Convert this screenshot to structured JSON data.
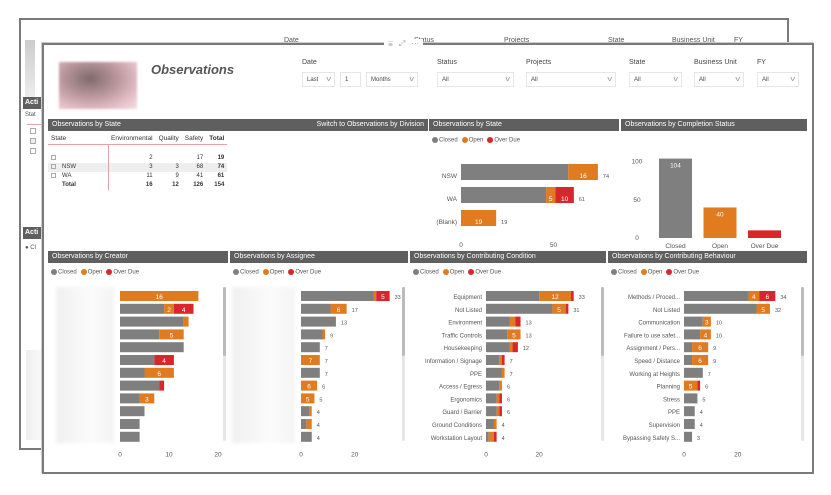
{
  "colors": {
    "closed": "#7f7f7f",
    "open": "#e07b20",
    "overdue": "#d9262a",
    "header": "#5f5f5f"
  },
  "background_window": {
    "title_fragment": "Acti",
    "slicer_labels": [
      "Date",
      "Status",
      "Projects",
      "State",
      "Business Unit",
      "FY"
    ],
    "panel1_header": "Acti",
    "panel1_col": "Stat",
    "panel2_header": "Acti",
    "legend_fragment": "Cl"
  },
  "report": {
    "title": "Observations",
    "header_icons": [
      "filter-icon",
      "focus-mode-icon",
      "more-options-icon"
    ],
    "slicers": {
      "date": {
        "label": "Date",
        "relative": "Last",
        "count": "1",
        "unit": "Months"
      },
      "status": {
        "label": "Status",
        "value": "All"
      },
      "projects": {
        "label": "Projects",
        "value": "All"
      },
      "state": {
        "label": "State",
        "value": "All"
      },
      "business_unit": {
        "label": "Business Unit",
        "value": "All"
      },
      "fy": {
        "label": "FY",
        "value": "All"
      }
    },
    "legend": [
      "Closed",
      "Open",
      "Over Due"
    ],
    "matrix": {
      "title": "Observations by State",
      "switch_link": "Switch to Observations by Division",
      "columns": [
        "State",
        "Environmental",
        "Quality",
        "Safety",
        "Total"
      ],
      "rows": [
        {
          "state": "",
          "environmental": "2",
          "quality": "",
          "safety": "17",
          "total": "19"
        },
        {
          "state": "NSW",
          "environmental": "3",
          "quality": "3",
          "safety": "68",
          "total": "74"
        },
        {
          "state": "WA",
          "environmental": "11",
          "quality": "9",
          "safety": "41",
          "total": "61"
        }
      ],
      "total_row": {
        "state": "Total",
        "environmental": "16",
        "quality": "12",
        "safety": "126",
        "total": "154"
      }
    }
  },
  "chart_data": [
    {
      "type": "bar",
      "orientation": "horizontal",
      "stacked": true,
      "title": "Observations by State",
      "categories": [
        "NSW",
        "WA",
        "(Blank)"
      ],
      "series": [
        {
          "name": "Closed",
          "values": [
            58,
            46,
            0
          ]
        },
        {
          "name": "Open",
          "values": [
            16,
            5,
            19
          ]
        },
        {
          "name": "Over Due",
          "values": [
            0,
            10,
            0
          ]
        }
      ],
      "totals": [
        74,
        61,
        19
      ],
      "segment_labels": [
        [
          "",
          "16",
          ""
        ],
        [
          "",
          "5",
          "10"
        ],
        [
          "",
          "19",
          ""
        ]
      ],
      "xticks": [
        "0",
        "50"
      ],
      "xlim": [
        0,
        80
      ],
      "legend": "top-left"
    },
    {
      "type": "bar",
      "orientation": "vertical",
      "title": "Observations by Completion Status",
      "categories": [
        "Closed",
        "Open",
        "Over Due"
      ],
      "values": [
        104,
        40,
        10
      ],
      "data_labels": [
        "104",
        "40",
        ""
      ],
      "yticks": [
        "0",
        "50",
        "100"
      ],
      "ylim": [
        0,
        110
      ]
    },
    {
      "type": "bar",
      "orientation": "horizontal",
      "stacked": true,
      "title": "Observations by Creator",
      "categories_blurred": true,
      "series": [
        {
          "name": "Closed",
          "values": [
            0,
            9,
            13,
            8,
            13,
            7,
            5,
            8,
            4,
            5,
            4,
            4
          ]
        },
        {
          "name": "Open",
          "values": [
            16,
            2,
            1,
            5,
            0,
            0,
            6,
            0,
            3,
            0,
            0,
            0
          ]
        },
        {
          "name": "Over Due",
          "values": [
            0,
            4,
            0,
            0,
            0,
            4,
            0,
            1,
            0,
            0,
            0,
            0
          ]
        }
      ],
      "segment_labels": [
        [
          "",
          "16",
          ""
        ],
        [
          "",
          "2",
          "4"
        ],
        [
          "",
          "",
          ""
        ],
        [
          "",
          "5",
          ""
        ],
        [
          "",
          "",
          ""
        ],
        [
          "",
          "",
          "4"
        ],
        [
          "",
          "6",
          ""
        ],
        [
          "",
          "",
          ""
        ],
        [
          "",
          "3",
          ""
        ],
        [
          "",
          "",
          ""
        ],
        [
          "",
          "",
          ""
        ],
        [
          "",
          "",
          ""
        ]
      ],
      "xticks": [
        "0",
        "10",
        "20"
      ],
      "xlim": [
        0,
        20
      ]
    },
    {
      "type": "bar",
      "orientation": "horizontal",
      "stacked": true,
      "title": "Observations by Assignee",
      "categories_blurred": true,
      "series": [
        {
          "name": "Closed",
          "values": [
            27,
            11,
            13,
            8,
            7,
            0,
            7,
            0,
            0,
            3,
            2,
            4
          ]
        },
        {
          "name": "Open",
          "values": [
            1,
            6,
            0,
            1,
            0,
            7,
            0,
            6,
            5,
            1,
            2,
            0
          ]
        },
        {
          "name": "Over Due",
          "values": [
            5,
            0,
            0,
            0,
            0,
            0,
            0,
            0,
            0,
            0,
            0,
            0
          ]
        }
      ],
      "totals": [
        33,
        17,
        13,
        9,
        7,
        7,
        7,
        6,
        5,
        4,
        4,
        4
      ],
      "segment_labels": [
        [
          "",
          "",
          "5"
        ],
        [
          "",
          "6",
          ""
        ],
        [
          "",
          "",
          ""
        ],
        [
          "",
          "",
          ""
        ],
        [
          "",
          "",
          ""
        ],
        [
          "",
          "7",
          ""
        ],
        [
          "",
          "",
          ""
        ],
        [
          "",
          "6",
          ""
        ],
        [
          "",
          "5",
          ""
        ],
        [
          "",
          "",
          ""
        ],
        [
          "",
          "",
          ""
        ],
        [
          "",
          "",
          ""
        ]
      ],
      "xticks": [
        "0",
        "20"
      ],
      "xlim": [
        0,
        35
      ]
    },
    {
      "type": "bar",
      "orientation": "horizontal",
      "stacked": true,
      "title": "Observations by Contributing Condition",
      "categories": [
        "Equipment",
        "Not Listed",
        "Environment",
        "Traffic Controls",
        "Housekeeping",
        "Information / Signage",
        "PPE",
        "Access / Egress",
        "Ergonomics",
        "Guard / Barrier",
        "Ground Conditions",
        "Workstation Layout"
      ],
      "series": [
        {
          "name": "Closed",
          "values": [
            20,
            25,
            9,
            8,
            9,
            5,
            6,
            5,
            4,
            4,
            3,
            1
          ]
        },
        {
          "name": "Open",
          "values": [
            12,
            5,
            2,
            5,
            1,
            1,
            1,
            1,
            1,
            1,
            1,
            2
          ]
        },
        {
          "name": "Over Due",
          "values": [
            1,
            1,
            2,
            0,
            2,
            1,
            0,
            0,
            1,
            1,
            0,
            1
          ]
        }
      ],
      "totals": [
        33,
        31,
        13,
        13,
        12,
        7,
        7,
        6,
        6,
        6,
        4,
        4
      ],
      "segment_labels": [
        [
          "",
          "12",
          ""
        ],
        [
          "",
          "5",
          ""
        ],
        [
          "",
          "",
          ""
        ],
        [
          "",
          "5",
          ""
        ],
        [
          "",
          "",
          ""
        ],
        [
          "",
          "",
          ""
        ],
        [
          "",
          "",
          ""
        ],
        [
          "",
          "",
          ""
        ],
        [
          "",
          "",
          ""
        ],
        [
          "",
          "",
          ""
        ],
        [
          "",
          "",
          ""
        ],
        [
          "",
          "",
          ""
        ]
      ],
      "xticks": [
        "0",
        "20"
      ],
      "xlim": [
        0,
        35
      ]
    },
    {
      "type": "bar",
      "orientation": "horizontal",
      "stacked": true,
      "title": "Observations by Contributing Behaviour",
      "categories": [
        "Methods / Proced...",
        "Not Listed",
        "Communication",
        "Failure to use safet...",
        "Assignment / Pers...",
        "Speed / Distance",
        "Working at Heights",
        "Planning",
        "Stress",
        "PPE",
        "Supervision",
        "Bypassing Safety S..."
      ],
      "series": [
        {
          "name": "Closed",
          "values": [
            24,
            27,
            7,
            6,
            3,
            3,
            7,
            0,
            5,
            4,
            4,
            3
          ]
        },
        {
          "name": "Open",
          "values": [
            4,
            5,
            3,
            4,
            6,
            6,
            0,
            5,
            0,
            0,
            0,
            0
          ]
        },
        {
          "name": "Over Due",
          "values": [
            6,
            0,
            0,
            0,
            0,
            0,
            0,
            1,
            0,
            0,
            0,
            0
          ]
        }
      ],
      "totals": [
        34,
        32,
        10,
        10,
        9,
        9,
        7,
        6,
        5,
        4,
        4,
        3
      ],
      "segment_labels": [
        [
          "",
          "4",
          "6"
        ],
        [
          "",
          "5",
          ""
        ],
        [
          "",
          "3",
          ""
        ],
        [
          "",
          "4",
          ""
        ],
        [
          "",
          "6",
          ""
        ],
        [
          "",
          "6",
          ""
        ],
        [
          "",
          "",
          ""
        ],
        [
          "",
          "5",
          ""
        ],
        [
          "",
          "",
          ""
        ],
        [
          "",
          "",
          ""
        ],
        [
          "",
          "",
          ""
        ],
        [
          "",
          "",
          ""
        ]
      ],
      "xticks": [
        "0",
        "20"
      ],
      "xlim": [
        0,
        35
      ]
    }
  ]
}
